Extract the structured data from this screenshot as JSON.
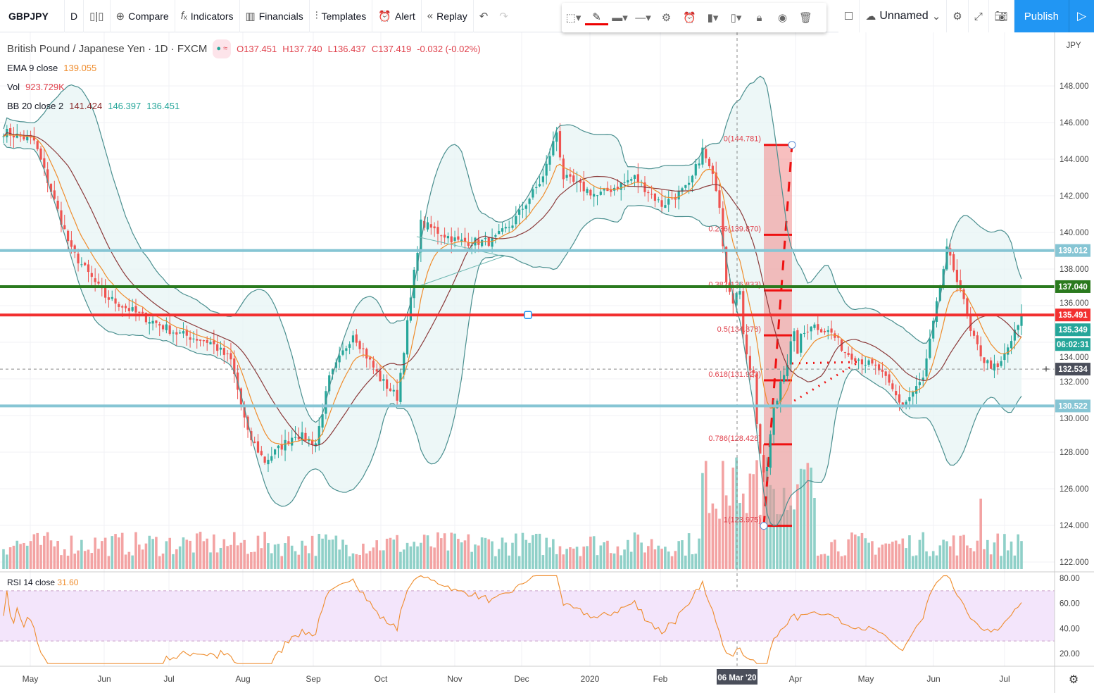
{
  "toolbar": {
    "symbol": "GBPJPY",
    "interval": "D",
    "compare": "Compare",
    "indicators": "Indicators",
    "financials": "Financials",
    "templates": "Templates",
    "alert": "Alert",
    "replay": "Replay",
    "layout_name": "Unnamed",
    "publish": "Publish",
    "currency": "JPY"
  },
  "legend": {
    "title": "British Pound / Japanese Yen · 1D · FXCM",
    "o": "O137.451",
    "h": "H137.740",
    "l": "L136.437",
    "c": "C137.419",
    "chg": "-0.032 (-0.02%)",
    "ema_label": "EMA 9 close",
    "ema_value": "139.055",
    "vol_label": "Vol",
    "vol_value": "923.729K",
    "bb_label": "BB 20 close 2",
    "bb_basis": "141.424",
    "bb_upper": "146.397",
    "bb_lower": "136.451",
    "rsi_label": "RSI 14 close",
    "rsi_value": "31.60"
  },
  "colors": {
    "up": "#26a69a",
    "down": "#ef5350",
    "ema": "#ef8c2c",
    "basis": "#8b3a3a",
    "bands": "#4a8f8f",
    "rsi": "#ef8c2c",
    "accent": "#2196f3"
  },
  "price_axis": [
    "148.000",
    "146.000",
    "144.000",
    "142.000",
    "140.000",
    "138.000",
    "136.000",
    "134.000",
    "132.000",
    "130.000",
    "128.000",
    "126.000",
    "124.000",
    "122.000"
  ],
  "rsi_axis": [
    "80.00",
    "60.00",
    "40.00",
    "20.00"
  ],
  "time_axis": [
    "May",
    "Jun",
    "Jul",
    "Aug",
    "Sep",
    "Oct",
    "Nov",
    "Dec",
    "2020",
    "Feb",
    "Apr",
    "May",
    "Jun",
    "Jul"
  ],
  "crosshair_date": "06 Mar '20",
  "hlines": [
    {
      "price": 139.012,
      "label": "139.012",
      "color": "#86c5d4"
    },
    {
      "price": 137.04,
      "label": "137.040",
      "color": "#2a7a1e"
    },
    {
      "price": 135.491,
      "label": "135.491",
      "color": "#f23030"
    },
    {
      "price": 130.522,
      "label": "130.522",
      "color": "#86c5d4"
    }
  ],
  "last_price": {
    "label": "135.349",
    "countdown": "06:02:31"
  },
  "crosshair_price": "132.534",
  "fib": [
    {
      "level": "0(144.781)",
      "price": 144.781
    },
    {
      "level": "0.236(139.870)",
      "price": 139.87
    },
    {
      "level": "0.382(136.833)",
      "price": 136.833
    },
    {
      "level": "0.5(134.378)",
      "price": 134.378
    },
    {
      "level": "0.618(131.923)",
      "price": 131.923
    },
    {
      "level": "0.786(128.428)",
      "price": 128.428
    },
    {
      "level": "1(123.975)",
      "price": 123.975
    }
  ],
  "chart_data": {
    "type": "candlestick",
    "symbol": "GBPJPY",
    "ylim": [
      121.5,
      149.5
    ],
    "close_path": [
      [
        0,
        145.5
      ],
      [
        9,
        145
      ],
      [
        20,
        139
      ],
      [
        30,
        136.5
      ],
      [
        40,
        135.5
      ],
      [
        51,
        134.5
      ],
      [
        61,
        134
      ],
      [
        67,
        133
      ],
      [
        72,
        129
      ],
      [
        77,
        127.5
      ],
      [
        86,
        129
      ],
      [
        92,
        128.5
      ],
      [
        96,
        132
      ],
      [
        103,
        134.5
      ],
      [
        111,
        132
      ],
      [
        116,
        131
      ],
      [
        119,
        135
      ],
      [
        123,
        140.5
      ],
      [
        134,
        139.5
      ],
      [
        144,
        139.5
      ],
      [
        150,
        140.5
      ],
      [
        159,
        143
      ],
      [
        163,
        145.5
      ],
      [
        165,
        143
      ],
      [
        175,
        142
      ],
      [
        186,
        143
      ],
      [
        194,
        141.5
      ],
      [
        202,
        142.5
      ],
      [
        206,
        144.5
      ],
      [
        211,
        142
      ],
      [
        213,
        138
      ],
      [
        217,
        136
      ],
      [
        221,
        132
      ],
      [
        224,
        126
      ],
      [
        227,
        130
      ],
      [
        230,
        133
      ],
      [
        238,
        135
      ],
      [
        244,
        134.5
      ],
      [
        248,
        133.5
      ],
      [
        258,
        132.5
      ],
      [
        265,
        130.5
      ],
      [
        271,
        132
      ],
      [
        275,
        136
      ],
      [
        278,
        139
      ],
      [
        282,
        137
      ],
      [
        285,
        134.5
      ],
      [
        289,
        133
      ],
      [
        293,
        132.5
      ],
      [
        300,
        135.3
      ]
    ],
    "rsi_range": [
      10,
      85
    ]
  }
}
